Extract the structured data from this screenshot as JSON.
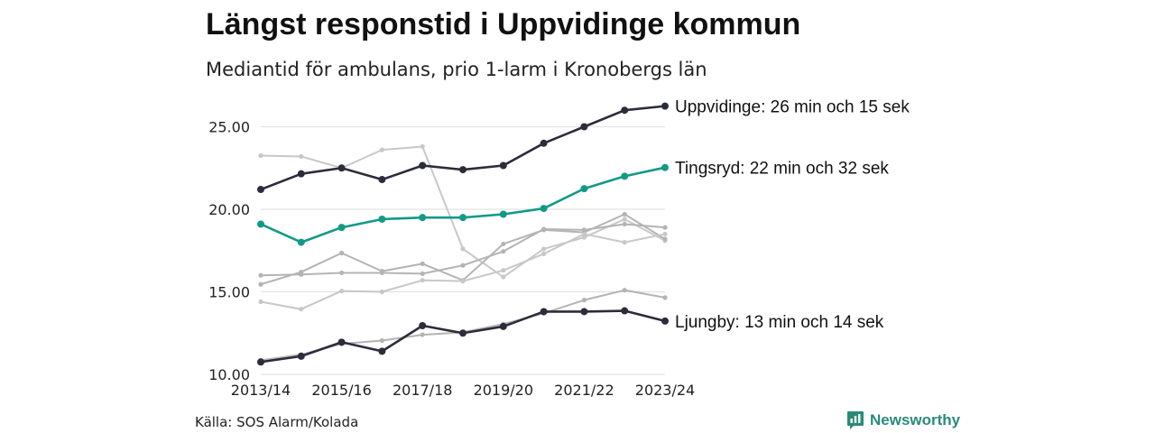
{
  "title": "Längst responstid i Uppvidinge kommun",
  "subtitle": "Mediantid för ambulans, prio 1-larm i Kronobergs län",
  "source": "Källa: SOS Alarm/Kolada",
  "brand": "Newsworthy",
  "colors": {
    "highlight_dark": "#2c2c3c",
    "highlight_teal": "#139a86",
    "grey_light": "#c8c8c8",
    "grey_mid": "#b4b4b4",
    "grid": "#e3e3e3",
    "brand": "#2a8a78"
  },
  "chart_data": {
    "type": "line",
    "x": [
      "2013/14",
      "2014/15",
      "2015/16",
      "2016/17",
      "2017/18",
      "2018/19",
      "2019/20",
      "2020/21",
      "2021/22",
      "2022/23",
      "2023/24"
    ],
    "x_tick_labels": [
      "2013/14",
      "2015/16",
      "2017/18",
      "2019/20",
      "2021/22",
      "2023/24"
    ],
    "ylim": [
      10,
      26.5
    ],
    "y_ticks": [
      10,
      15,
      20,
      25
    ],
    "y_tick_labels": [
      "10.00",
      "15.00",
      "20.00",
      "25.00"
    ],
    "grid": "horizontal",
    "highlighted_series": [
      {
        "label": "Uppvidinge: 26 min och 15 sek",
        "color": "#2c2c3c",
        "values": [
          21.2,
          22.15,
          22.5,
          21.8,
          22.65,
          22.4,
          22.65,
          24.0,
          25.0,
          26.0,
          26.25
        ]
      },
      {
        "label": "Tingsryd: 22 min och 32 sek",
        "color": "#139a86",
        "values": [
          19.1,
          18.0,
          18.9,
          19.4,
          19.5,
          19.5,
          19.7,
          20.05,
          21.25,
          22.0,
          22.53
        ]
      },
      {
        "label": "Ljungby: 13 min och 14 sek",
        "color": "#2c2c3c",
        "values": [
          10.75,
          11.1,
          11.95,
          11.4,
          12.95,
          12.5,
          12.9,
          13.8,
          13.8,
          13.85,
          13.23
        ]
      }
    ],
    "background_series": [
      {
        "color": "#c8c8c8",
        "values": [
          23.25,
          23.2,
          22.5,
          23.6,
          23.8,
          17.6,
          15.9,
          17.6,
          18.3,
          19.4,
          18.1
        ]
      },
      {
        "color": "#b4b4b4",
        "values": [
          15.45,
          16.2,
          17.35,
          16.25,
          16.7,
          15.7,
          17.9,
          18.75,
          18.6,
          19.7,
          18.2
        ]
      },
      {
        "color": "#b4b4b4",
        "values": [
          16.0,
          16.05,
          16.15,
          16.15,
          16.1,
          16.6,
          17.45,
          18.8,
          18.75,
          19.1,
          18.9
        ]
      },
      {
        "color": "#c8c8c8",
        "values": [
          14.4,
          13.95,
          15.05,
          15.0,
          15.7,
          15.65,
          16.3,
          17.3,
          18.5,
          18.0,
          18.5
        ]
      },
      {
        "color": "#b4b4b4",
        "values": [
          10.85,
          11.2,
          11.85,
          12.05,
          12.4,
          12.55,
          13.05,
          13.7,
          14.5,
          15.1,
          14.65
        ]
      }
    ]
  }
}
